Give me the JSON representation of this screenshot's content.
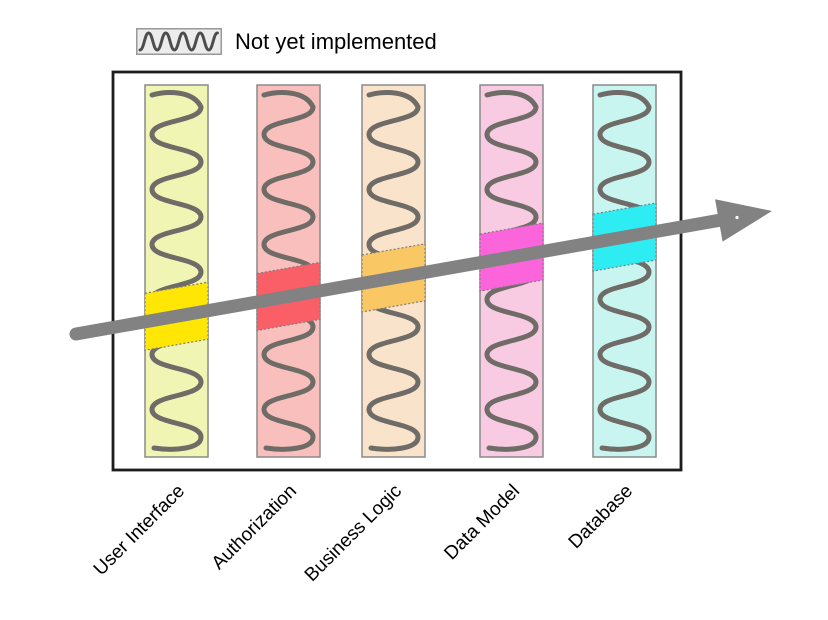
{
  "legend": {
    "label": "Not yet implemented",
    "box_fill": "#ececec",
    "box_border": "#999999",
    "wave_color": "#4d4d4d"
  },
  "diagram": {
    "background": "#ffffff",
    "frame_color": "#1c1c1c",
    "bar_border": "#8a8a8a",
    "wave_color": "#6f6b67",
    "highlight_border": "#7d7d7d",
    "arrow_color": "#828282",
    "layers": [
      {
        "label": "User Interface",
        "fill": "#f0f5b4",
        "highlight": "#ffe604"
      },
      {
        "label": "Authorization",
        "fill": "#f9bfbc",
        "highlight": "#fa5f68"
      },
      {
        "label": "Business Logic",
        "fill": "#fae3cb",
        "highlight": "#f9c763"
      },
      {
        "label": "Data Model",
        "fill": "#f9cbe3",
        "highlight": "#fc64dc"
      },
      {
        "label": "Database",
        "fill": "#c9f5f1",
        "highlight": "#2dedf3"
      }
    ]
  }
}
